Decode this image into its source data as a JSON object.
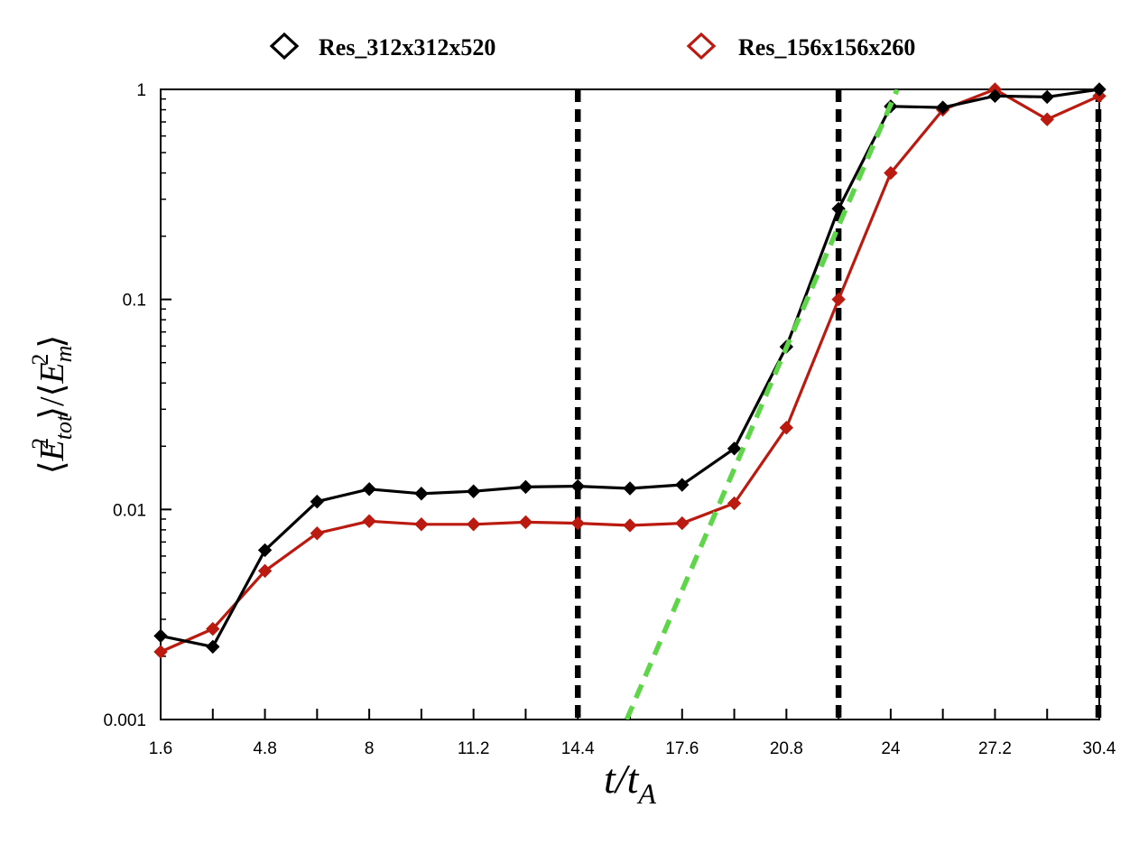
{
  "chart_data": {
    "type": "line",
    "title": "",
    "xlabel": "t/tA",
    "ylabel": "⟨E_tot²⟩/⟨E_m²⟩",
    "xlabel_parts": {
      "main": "t/t",
      "sub": "A"
    },
    "ylabel_parts": {
      "num_main": "E",
      "num_sup": "2",
      "num_sub": "tot",
      "den_main": "E",
      "den_sup": "2",
      "den_sub": "m"
    },
    "yscale": "log",
    "xlim": [
      1.6,
      30.4
    ],
    "ylim": [
      0.001,
      1
    ],
    "xticks": [
      1.6,
      4.8,
      8,
      11.2,
      14.4,
      17.6,
      20.8,
      24,
      27.2,
      30.4
    ],
    "xtick_labels": [
      "1.6",
      "4.8",
      "8",
      "11.2",
      "14.4",
      "17.6",
      "20.8",
      "24",
      "27.2",
      "30.4"
    ],
    "yticks": [
      0.001,
      0.01,
      0.1,
      1
    ],
    "ytick_labels": [
      "0.001",
      "0.01",
      "0.1",
      "1"
    ],
    "legend_position": "top-center",
    "x": [
      1.6,
      3.2,
      4.8,
      6.4,
      8.0,
      9.6,
      11.2,
      12.8,
      14.4,
      16.0,
      17.6,
      19.2,
      20.8,
      22.4,
      24.0,
      25.6,
      27.2,
      28.8,
      30.4
    ],
    "series": [
      {
        "name": "Res_312x312x520",
        "color": "#000000",
        "marker": "diamond",
        "values": [
          0.0025,
          0.00222,
          0.0064,
          0.0109,
          0.0125,
          0.0119,
          0.0122,
          0.0128,
          0.0129,
          0.0126,
          0.0131,
          0.0195,
          0.0595,
          0.27,
          0.83,
          0.82,
          0.93,
          0.92,
          1.0
        ]
      },
      {
        "name": "Res_156x156x260",
        "color": "#bb1a10",
        "marker": "diamond",
        "values": [
          0.0021,
          0.0027,
          0.0051,
          0.0077,
          0.0088,
          0.0085,
          0.0085,
          0.0087,
          0.0086,
          0.0084,
          0.0086,
          0.0107,
          0.0245,
          0.1,
          0.4,
          0.8,
          1.0,
          0.72,
          0.93
        ]
      }
    ],
    "annotations": {
      "vertical_dashed_lines_x": [
        14.4,
        22.4,
        30.4
      ],
      "exponential_fit": {
        "color": "#5fd64a",
        "style": "dashed",
        "points": [
          [
            15.9,
            0.001
          ],
          [
            24.2,
            1.0
          ]
        ]
      }
    }
  }
}
